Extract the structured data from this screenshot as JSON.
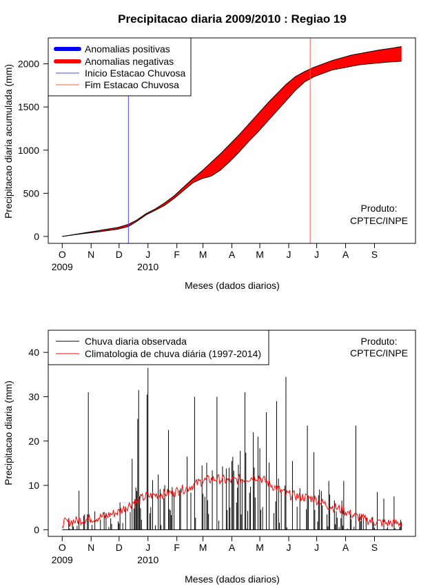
{
  "title": "Precipitacao diaria 2009/2010 : Regiao 19",
  "colors": {
    "negative": "#ff0000",
    "positive": "#0000ff",
    "inicio_line": "#4444ff",
    "fim_line": "#ff5c3c",
    "observed": "#000000",
    "climatology": "#ff0000"
  },
  "chart_data": [
    {
      "type": "area",
      "id": "top",
      "ylabel": "Precipitacao diaria acumulada (mm)",
      "xlabel": "Meses (dados diarios)",
      "x_ticks": [
        "O",
        "N",
        "D",
        "J",
        "F",
        "M",
        "A",
        "M",
        "J",
        "J",
        "A",
        "S"
      ],
      "x_tick_days": [
        0,
        31,
        61,
        92,
        123,
        151,
        182,
        212,
        243,
        273,
        304,
        335
      ],
      "x_year_labels": [
        {
          "day": 0,
          "text": "2009"
        },
        {
          "day": 92,
          "text": "2010"
        }
      ],
      "x_range_days": [
        -15,
        379
      ],
      "ylim": [
        -80,
        2300
      ],
      "y_ticks": [
        0,
        500,
        1000,
        1500,
        2000
      ],
      "inicio_estacao_day": 71,
      "fim_estacao_day": 266,
      "observed_cumulative": {
        "days": [
          0,
          20,
          40,
          60,
          71,
          80,
          90,
          100,
          110,
          120,
          130,
          140,
          150,
          160,
          170,
          180,
          190,
          200,
          210,
          220,
          230,
          240,
          250,
          260,
          270,
          280,
          290,
          300,
          310,
          320,
          330,
          340,
          350,
          364
        ],
        "values": [
          0,
          30,
          55,
          85,
          115,
          175,
          250,
          305,
          360,
          440,
          530,
          620,
          670,
          700,
          770,
          870,
          980,
          1100,
          1210,
          1330,
          1450,
          1570,
          1690,
          1790,
          1850,
          1890,
          1930,
          1950,
          1970,
          1990,
          2000,
          2010,
          2020,
          2030
        ]
      },
      "climatology_cumulative": {
        "days": [
          0,
          20,
          40,
          60,
          71,
          80,
          90,
          100,
          110,
          120,
          130,
          140,
          150,
          160,
          170,
          180,
          190,
          200,
          210,
          220,
          230,
          240,
          250,
          260,
          270,
          280,
          290,
          300,
          310,
          320,
          330,
          340,
          350,
          364
        ],
        "values": [
          0,
          35,
          70,
          105,
          140,
          190,
          265,
          320,
          390,
          470,
          570,
          670,
          760,
          860,
          960,
          1070,
          1180,
          1300,
          1420,
          1540,
          1650,
          1760,
          1850,
          1910,
          1960,
          2000,
          2040,
          2070,
          2100,
          2120,
          2140,
          2160,
          2175,
          2200
        ]
      },
      "legend": {
        "position": "top-left",
        "entries": [
          "Anomalias positivas",
          "Anomalias negativas",
          "Inicio Estacao Chuvosa",
          "Fim Estacao Chuvosa"
        ]
      },
      "annotation": [
        "Produto:",
        "CPTEC/INPE"
      ]
    },
    {
      "type": "line",
      "id": "bottom",
      "ylabel": "Precipitacao diaria (mm)",
      "xlabel": "Meses (dados diarios)",
      "x_ticks": [
        "O",
        "N",
        "D",
        "J",
        "F",
        "M",
        "A",
        "M",
        "J",
        "J",
        "A",
        "S"
      ],
      "x_tick_days": [
        0,
        31,
        61,
        92,
        123,
        151,
        182,
        212,
        243,
        273,
        304,
        335
      ],
      "x_year_labels": [
        {
          "day": 0,
          "text": "2009"
        },
        {
          "day": 92,
          "text": "2010"
        }
      ],
      "x_range_days": [
        -15,
        379
      ],
      "ylim": [
        -1.5,
        45
      ],
      "y_ticks": [
        0,
        10,
        20,
        30,
        40
      ],
      "observed_daily_peaks": [
        {
          "day": 18,
          "value": 8.8
        },
        {
          "day": 28,
          "value": 31.0
        },
        {
          "day": 65,
          "value": 1.5
        },
        {
          "day": 75,
          "value": 16.0
        },
        {
          "day": 81,
          "value": 25.0
        },
        {
          "day": 82,
          "value": 31.5
        },
        {
          "day": 91,
          "value": 30.5
        },
        {
          "day": 92,
          "value": 36.5
        },
        {
          "day": 114,
          "value": 22.5
        },
        {
          "day": 134,
          "value": 16.5
        },
        {
          "day": 142,
          "value": 30.0
        },
        {
          "day": 150,
          "value": 14.5
        },
        {
          "day": 166,
          "value": 30.0
        },
        {
          "day": 182,
          "value": 15.5
        },
        {
          "day": 196,
          "value": 31.0
        },
        {
          "day": 205,
          "value": 22.0
        },
        {
          "day": 210,
          "value": 21.0
        },
        {
          "day": 219,
          "value": 26.5
        },
        {
          "day": 230,
          "value": 29.0
        },
        {
          "day": 240,
          "value": 34.5
        },
        {
          "day": 247,
          "value": 15.5
        },
        {
          "day": 263,
          "value": 23.5
        },
        {
          "day": 270,
          "value": 17.5
        },
        {
          "day": 286,
          "value": 11.0
        },
        {
          "day": 302,
          "value": 11.0
        },
        {
          "day": 315,
          "value": 23.5
        },
        {
          "day": 338,
          "value": 8.5
        },
        {
          "day": 345,
          "value": 7.0
        },
        {
          "day": 356,
          "value": 7.5
        }
      ],
      "climatology_daily": {
        "days": [
          0,
          15,
          30,
          45,
          60,
          75,
          90,
          105,
          120,
          135,
          150,
          165,
          180,
          195,
          210,
          225,
          240,
          255,
          270,
          285,
          300,
          315,
          330,
          345,
          364
        ],
        "values": [
          1.5,
          2.0,
          2.5,
          3.0,
          4.0,
          6.0,
          7.5,
          8.0,
          8.5,
          9.5,
          11.0,
          11.5,
          11.0,
          11.5,
          12.0,
          10.0,
          8.0,
          7.5,
          7.0,
          5.5,
          4.5,
          3.0,
          2.0,
          1.5,
          1.5
        ]
      },
      "legend": {
        "position": "top-left",
        "entries": [
          "Chuva diaria observada",
          "Climatologia de chuva diária (1997-2014)"
        ]
      },
      "annotation": [
        "Produto:",
        "CPTEC/INPE"
      ]
    }
  ]
}
